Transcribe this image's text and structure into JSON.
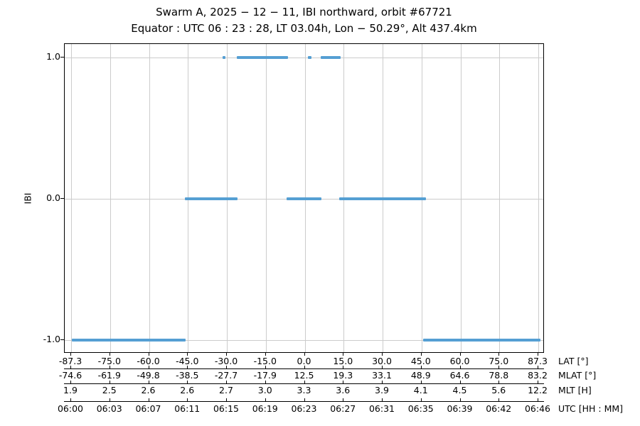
{
  "title": "Swarm A,  2025 − 12 − 11,  IBI northward,  orbit #67721",
  "subtitle": "Equator :  UTC 06 : 23 : 28,  LT 03.04h,  Lon  − 50.29°,  Alt 437.4km",
  "chart_data": {
    "type": "line",
    "title": "Swarm A, 2025-12-11, IBI northward, orbit #67721",
    "subtitle": "Equator: UTC 06:23:28, LT 03.04h, Lon -50.29°, Alt 437.4km",
    "ylabel": "IBI",
    "ylim": [
      -1.1,
      1.1
    ],
    "grid": true,
    "legend": "none",
    "line_color": "#559fd3",
    "grid_color": "#cccccc",
    "yticks": [
      {
        "value": 1.0,
        "label": "1.0"
      },
      {
        "value": 0.0,
        "label": "0.0"
      },
      {
        "value": -1.0,
        "label": "-1.0"
      }
    ],
    "x_axis_rows": [
      {
        "name": "lat",
        "unit_label": "LAT [°]",
        "ticks": [
          "-87.3",
          "-75.0",
          "-60.0",
          "-45.0",
          "-30.0",
          "-15.0",
          "0.0",
          "15.0",
          "30.0",
          "45.0",
          "60.0",
          "75.0",
          "87.3"
        ]
      },
      {
        "name": "mlat",
        "unit_label": "MLAT [°]",
        "ticks": [
          "-74.6",
          "-61.9",
          "-49.8",
          "-38.5",
          "-27.7",
          "-17.9",
          "12.5",
          "19.3",
          "33.1",
          "48.9",
          "64.6",
          "78.8",
          "83.2"
        ]
      },
      {
        "name": "mlt",
        "unit_label": "MLT [H]",
        "ticks": [
          "1.9",
          "2.5",
          "2.6",
          "2.6",
          "2.7",
          "3.0",
          "3.3",
          "3.6",
          "3.9",
          "4.1",
          "4.5",
          "5.6",
          "12.2"
        ]
      },
      {
        "name": "utc",
        "unit_label": "UTC [HH : MM]",
        "ticks": [
          "06:00",
          "06:03",
          "06:07",
          "06:11",
          "06:15",
          "06:19",
          "06:23",
          "06:27",
          "06:31",
          "06:35",
          "06:39",
          "06:42",
          "06:46"
        ]
      }
    ],
    "series": [
      {
        "name": "IBI",
        "segments": [
          {
            "y": -1,
            "x0": 0.0148,
            "x1": 0.2519,
            "utc": "06:00–06:11"
          },
          {
            "y": -1,
            "x0": 0.7467,
            "x1": 0.9911,
            "utc": "06:35–06:46"
          },
          {
            "y": 0,
            "x0": 0.2504,
            "x1": 0.36,
            "utc": "06:11–06:16"
          },
          {
            "y": 0,
            "x0": 0.4622,
            "x1": 0.5348,
            "utc": "06:21–06:25"
          },
          {
            "y": 0,
            "x0": 0.5719,
            "x1": 0.7526,
            "utc": "06:26–06:35"
          },
          {
            "y": 1,
            "x0": 0.3289,
            "x1": 0.3348,
            "utc": "06:15"
          },
          {
            "y": 1,
            "x0": 0.3585,
            "x1": 0.4652,
            "utc": "06:16–06:21"
          },
          {
            "y": 1,
            "x0": 0.5067,
            "x1": 0.5141,
            "utc": "06:23"
          },
          {
            "y": 1,
            "x0": 0.5333,
            "x1": 0.5748,
            "utc": "06:25–06:26"
          }
        ]
      }
    ]
  }
}
